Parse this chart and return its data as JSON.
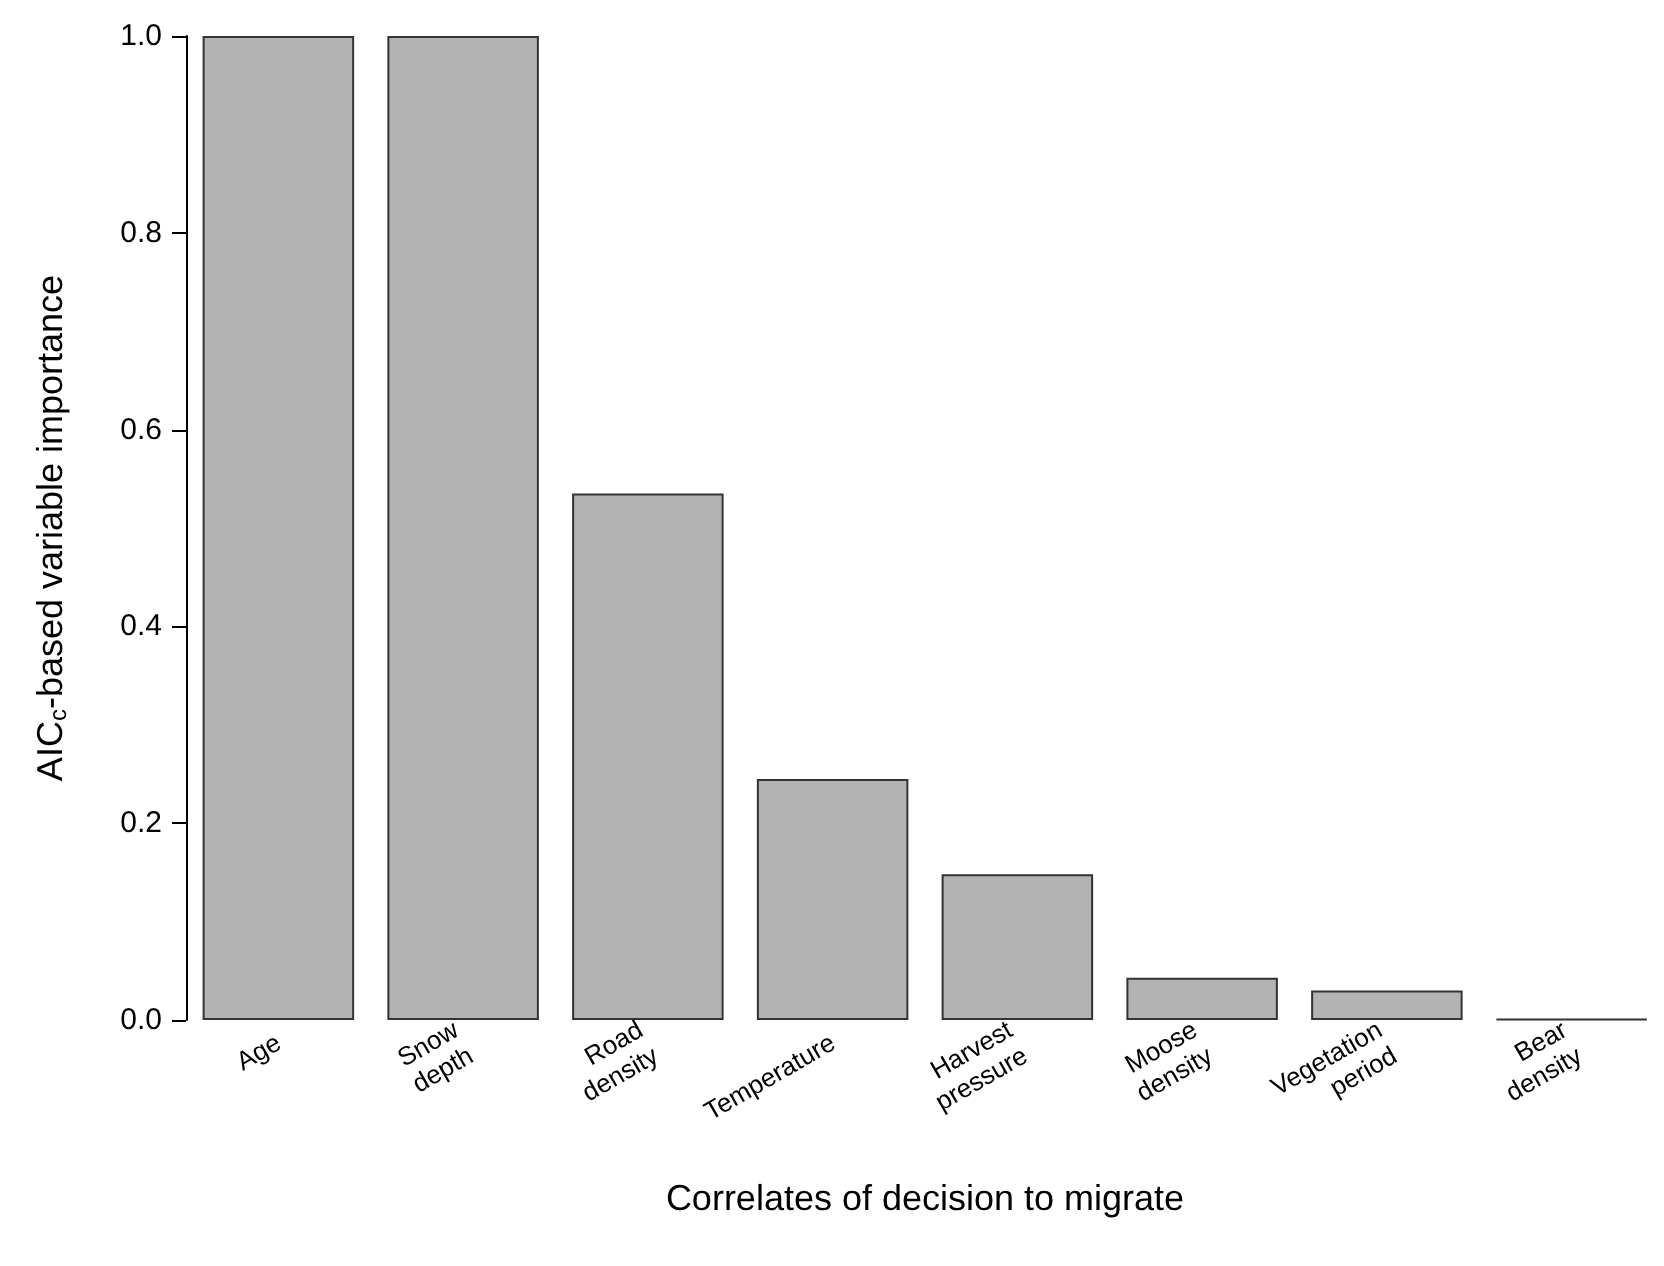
{
  "chart_data": {
    "type": "bar",
    "xlabel": "Correlates of decision to migrate",
    "ylabel": "AIC$_{c}$-based variable importance",
    "categories": [
      "Age",
      "Snow\ndepth",
      "Road\ndensity",
      "Temperature",
      "Harvest\npressure",
      "Moose\ndensity",
      "Vegetation\nperiod",
      "Bear\ndensity"
    ],
    "values": [
      1.0,
      1.0,
      0.535,
      0.245,
      0.148,
      0.043,
      0.03,
      0.001
    ],
    "colors": [
      "#b3b3b3",
      "#b3b3b3",
      "#b3b3b3",
      "#b3b3b3",
      "#b3b3b3",
      "#b3b3b3",
      "#b3b3b3",
      "#333333"
    ],
    "ylim": [
      0,
      1
    ],
    "yticks": [
      {
        "value": 0,
        "label": "0.0"
      },
      0.2,
      0.4,
      0.6,
      0.8,
      {
        "value": 1,
        "label": "1.0"
      }
    ],
    "grid": false
  }
}
